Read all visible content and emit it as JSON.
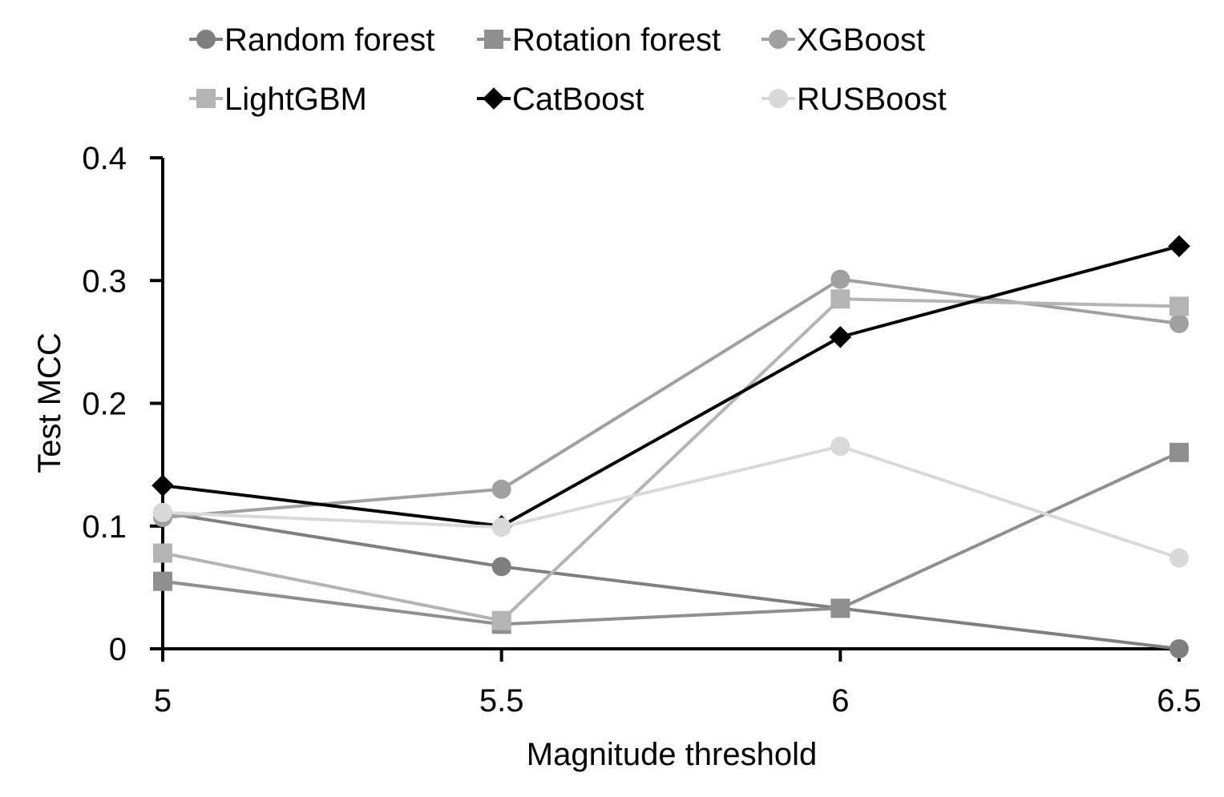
{
  "chart_data": {
    "type": "line",
    "title": "",
    "xlabel": "Magnitude threshold",
    "ylabel": "Test MCC",
    "x": [
      5,
      5.5,
      6,
      6.5
    ],
    "x_tick_labels": [
      "5",
      "5.5",
      "6",
      "6.5"
    ],
    "y_ticks": [
      0,
      0.1,
      0.2,
      0.3,
      0.4
    ],
    "y_tick_labels": [
      "0",
      "0.1",
      "0.2",
      "0.3",
      "0.4"
    ],
    "xlim": [
      5,
      6.5
    ],
    "ylim": [
      0,
      0.4
    ],
    "grid": false,
    "legend_position": "top",
    "series": [
      {
        "name": "Random forest",
        "values": [
          0.111,
          0.067,
          0.033,
          0.0
        ],
        "marker": "circle",
        "color": "#7f7f7f"
      },
      {
        "name": "Rotation forest",
        "values": [
          0.055,
          0.02,
          0.033,
          0.16
        ],
        "marker": "square",
        "color": "#8f8f8f"
      },
      {
        "name": "XGBoost",
        "values": [
          0.107,
          0.13,
          0.301,
          0.265
        ],
        "marker": "circle",
        "color": "#a0a0a0"
      },
      {
        "name": "LightGBM",
        "values": [
          0.078,
          0.023,
          0.285,
          0.279
        ],
        "marker": "square",
        "color": "#b4b4b4"
      },
      {
        "name": "CatBoost",
        "values": [
          0.133,
          0.1,
          0.254,
          0.328
        ],
        "marker": "diamond",
        "color": "#000000"
      },
      {
        "name": "RUSBoost",
        "values": [
          0.111,
          0.099,
          0.165,
          0.074
        ],
        "marker": "circle",
        "color": "#d9d9d9"
      }
    ]
  }
}
